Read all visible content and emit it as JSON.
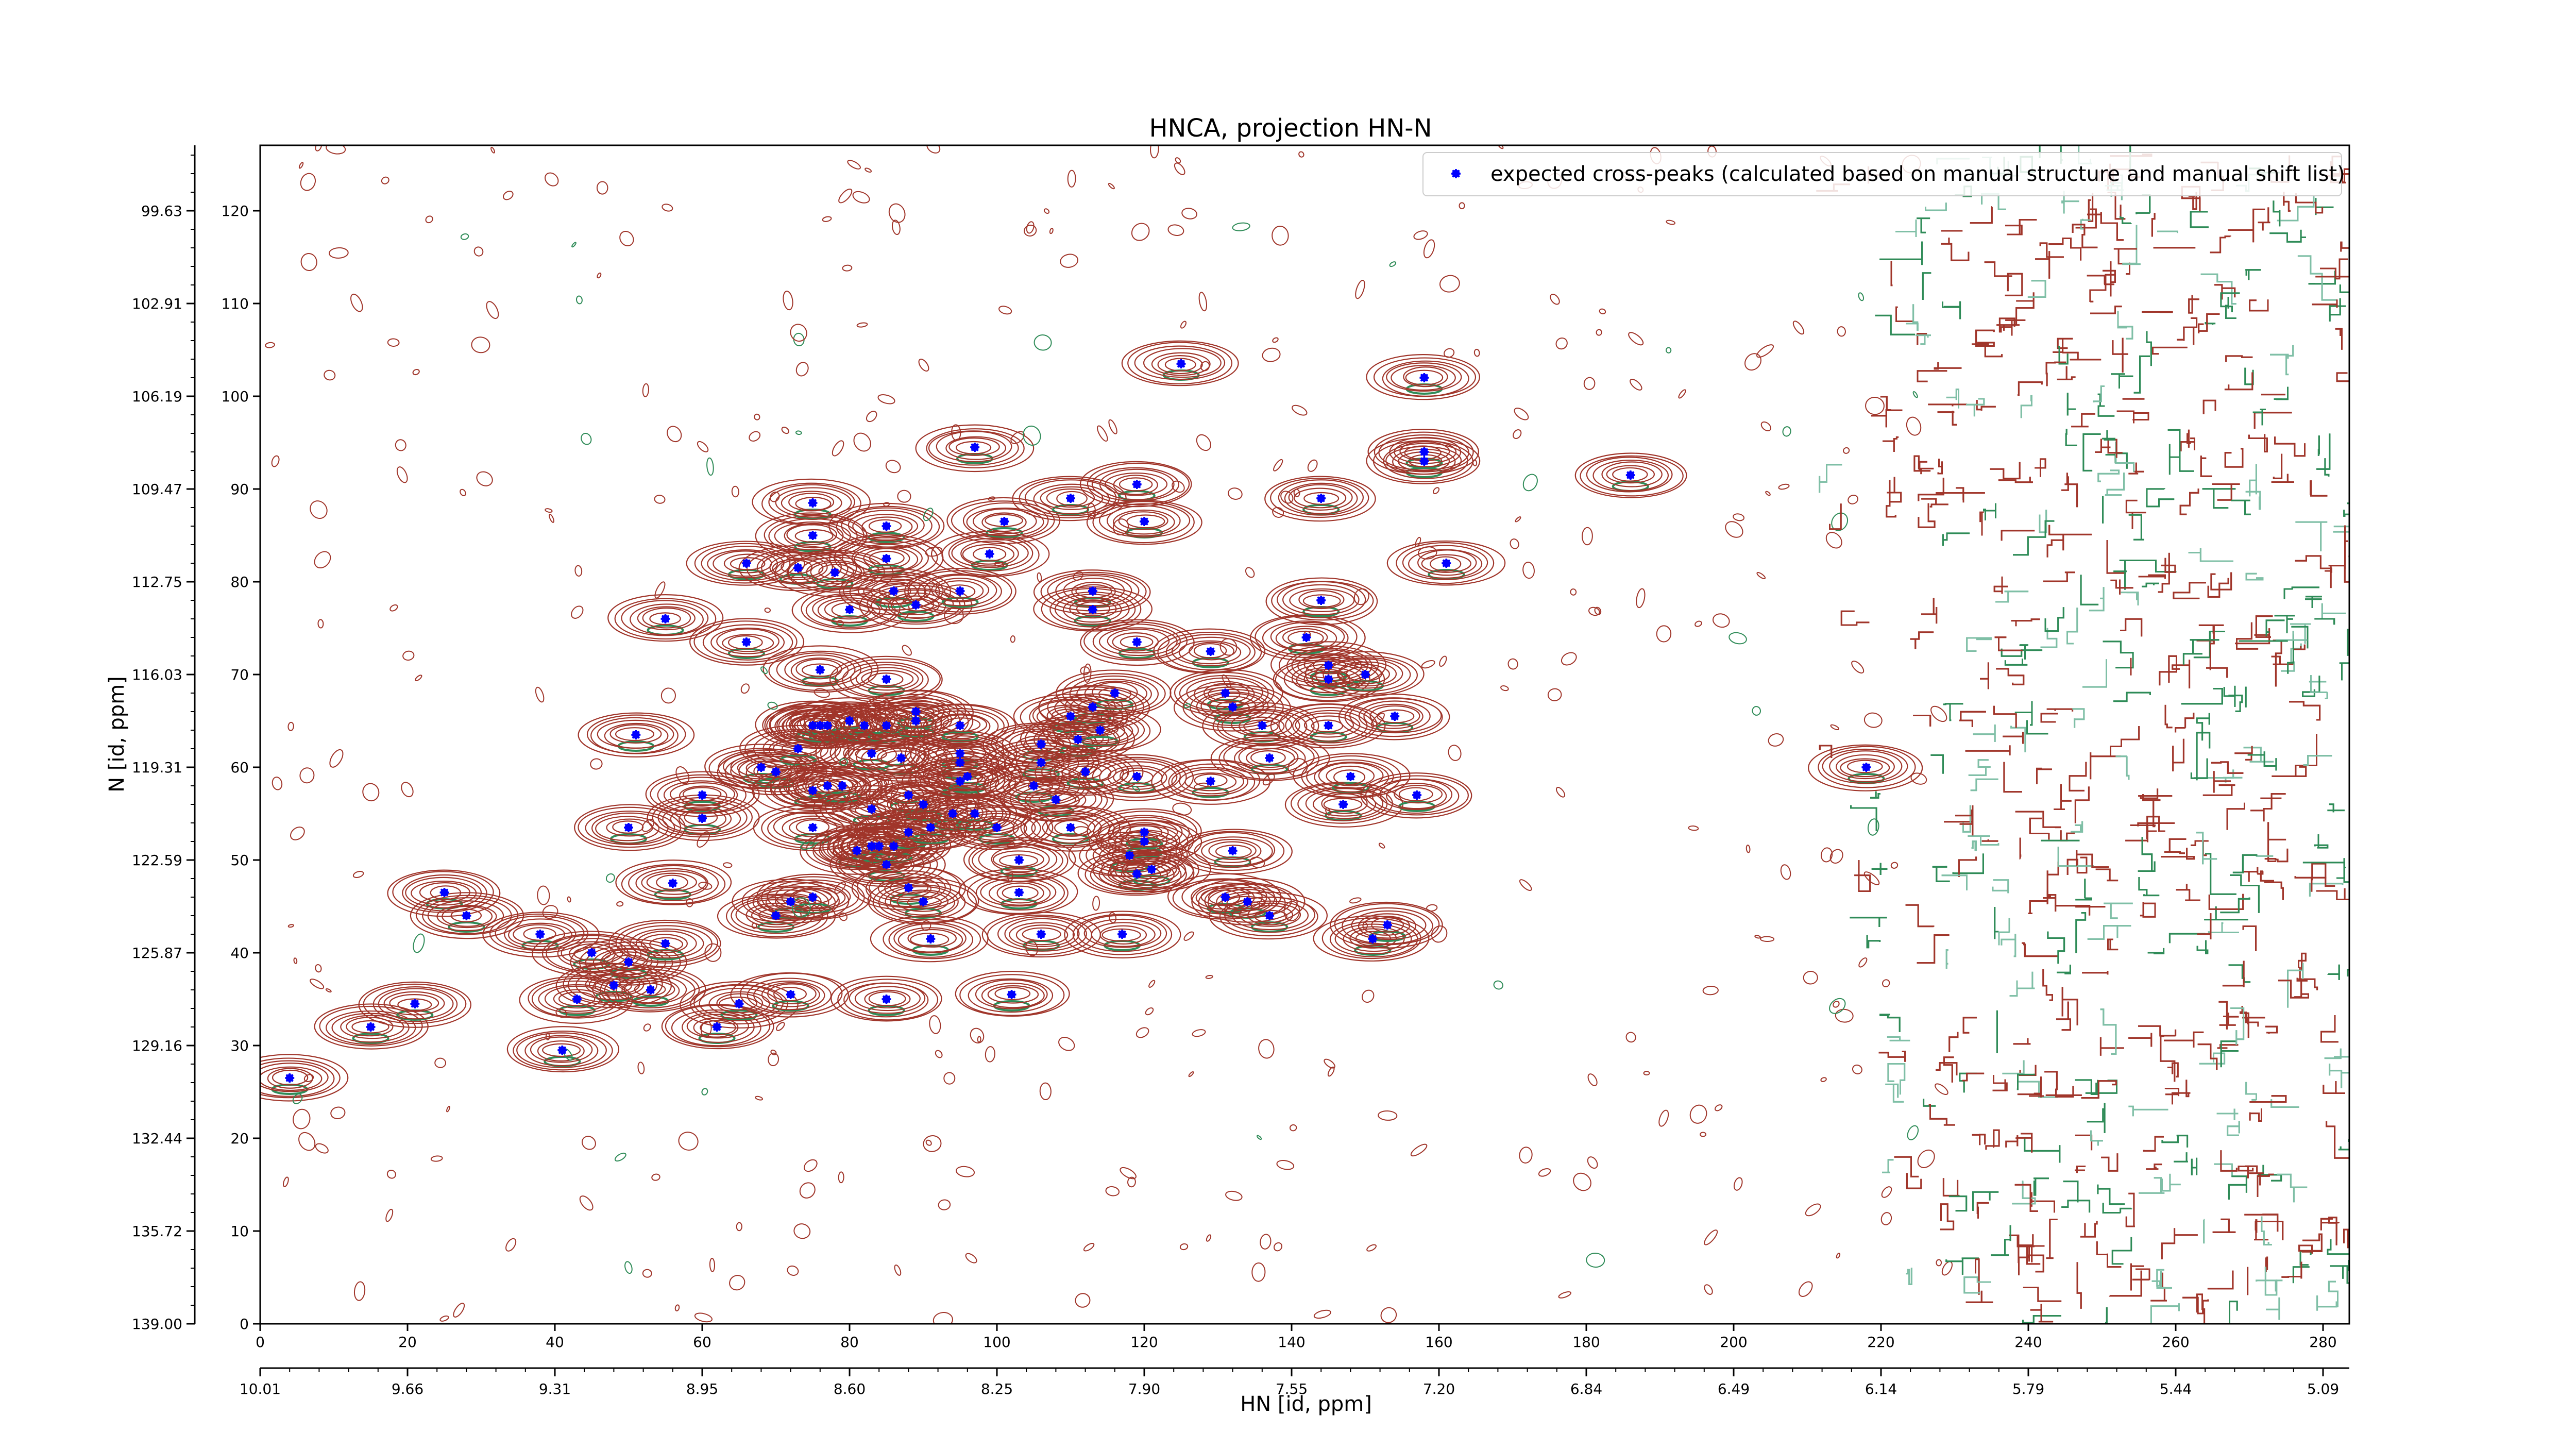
{
  "chart_data": {
    "type": "scatter",
    "title": "HNCA, projection HN-N",
    "xlabel": "HN [id, ppm]",
    "ylabel": "N [id, ppm]",
    "x_index_ticks": [
      "0",
      "20",
      "40",
      "60",
      "80",
      "100",
      "120",
      "140",
      "160",
      "180",
      "200",
      "220",
      "240",
      "260",
      "280"
    ],
    "x_ppm_ticks": [
      "10.01",
      "9.66",
      "9.31",
      "8.95",
      "8.60",
      "8.25",
      "7.90",
      "7.55",
      "7.20",
      "6.84",
      "6.49",
      "6.14",
      "5.79",
      "5.44",
      "5.09"
    ],
    "y_index_ticks": [
      "0",
      "10",
      "20",
      "30",
      "40",
      "50",
      "60",
      "70",
      "80",
      "90",
      "100",
      "110",
      "120"
    ],
    "y_ppm_ticks": [
      "139.00",
      "135.72",
      "132.44",
      "129.16",
      "125.87",
      "122.59",
      "119.31",
      "116.03",
      "112.75",
      "109.47",
      "106.19",
      "102.91",
      "99.63"
    ],
    "xlim": [
      0,
      285
    ],
    "ylim": [
      0,
      127
    ],
    "grid": false,
    "legend": {
      "placement": "top-right",
      "entries": [
        "expected cross-peaks (calculated based on manual structure and manual shift list)"
      ]
    },
    "colors": {
      "marker": "#0000ff",
      "contour_positive": "#a0352a",
      "contour_negative": "#2e8b57"
    },
    "series": [
      {
        "name": "expected cross-peaks (calculated based on manual structure and manual shift list)",
        "points": [
          [
            4,
            26.5
          ],
          [
            15,
            32
          ],
          [
            21,
            34.5
          ],
          [
            25,
            46.5
          ],
          [
            28,
            44
          ],
          [
            38,
            42
          ],
          [
            41,
            29.5
          ],
          [
            43,
            35
          ],
          [
            45,
            40
          ],
          [
            48,
            36.5
          ],
          [
            50,
            39
          ],
          [
            50,
            53.5
          ],
          [
            51,
            63.5
          ],
          [
            53,
            36
          ],
          [
            55,
            76
          ],
          [
            55,
            41
          ],
          [
            56,
            47.5
          ],
          [
            60,
            57
          ],
          [
            60,
            54.5
          ],
          [
            62,
            32
          ],
          [
            65,
            34.5
          ],
          [
            66,
            73.5
          ],
          [
            66,
            82
          ],
          [
            68,
            60
          ],
          [
            70,
            44
          ],
          [
            70,
            59.5
          ],
          [
            72,
            35.5
          ],
          [
            72,
            45.5
          ],
          [
            73,
            81.5
          ],
          [
            73,
            62
          ],
          [
            75,
            85
          ],
          [
            75,
            88.5
          ],
          [
            75,
            46
          ],
          [
            75,
            64.5
          ],
          [
            75,
            57.5
          ],
          [
            75,
            53.5
          ],
          [
            76,
            64.5
          ],
          [
            76,
            70.5
          ],
          [
            77,
            64.5
          ],
          [
            77,
            58
          ],
          [
            78,
            81
          ],
          [
            79,
            58
          ],
          [
            80,
            65
          ],
          [
            80,
            77
          ],
          [
            81,
            51
          ],
          [
            82,
            64.5
          ],
          [
            83,
            61.5
          ],
          [
            83,
            51.5
          ],
          [
            83,
            55.5
          ],
          [
            84,
            51.5
          ],
          [
            85,
            35
          ],
          [
            85,
            86
          ],
          [
            85,
            82.5
          ],
          [
            85,
            69.5
          ],
          [
            85,
            64.5
          ],
          [
            85,
            49.5
          ],
          [
            86,
            51.5
          ],
          [
            86,
            79
          ],
          [
            87,
            61
          ],
          [
            88,
            57
          ],
          [
            88,
            53
          ],
          [
            88,
            47
          ],
          [
            89,
            77.5
          ],
          [
            89,
            66
          ],
          [
            89,
            65
          ],
          [
            90,
            56
          ],
          [
            90,
            45.5
          ],
          [
            91,
            53.5
          ],
          [
            91,
            41.5
          ],
          [
            94,
            55
          ],
          [
            95,
            60.5
          ],
          [
            95,
            61.5
          ],
          [
            95,
            58.5
          ],
          [
            95,
            64.5
          ],
          [
            95,
            79
          ],
          [
            96,
            59
          ],
          [
            97,
            55
          ],
          [
            97,
            94.5
          ],
          [
            99,
            83
          ],
          [
            100,
            53.5
          ],
          [
            101,
            86.5
          ],
          [
            102,
            35.5
          ],
          [
            103,
            46.5
          ],
          [
            103,
            50
          ],
          [
            105,
            58
          ],
          [
            106,
            62.5
          ],
          [
            106,
            60.5
          ],
          [
            106,
            42
          ],
          [
            108,
            56.5
          ],
          [
            110,
            65.5
          ],
          [
            110,
            89
          ],
          [
            110,
            53.5
          ],
          [
            111,
            63
          ],
          [
            112,
            59.5
          ],
          [
            113,
            79
          ],
          [
            113,
            77
          ],
          [
            113,
            66.5
          ],
          [
            114,
            64
          ],
          [
            116,
            68
          ],
          [
            117,
            42
          ],
          [
            118,
            50.5
          ],
          [
            119,
            73.5
          ],
          [
            119,
            90.5
          ],
          [
            119,
            59
          ],
          [
            119,
            48.5
          ],
          [
            120,
            86.5
          ],
          [
            120,
            53
          ],
          [
            120,
            52
          ],
          [
            121,
            49
          ],
          [
            125,
            103.5
          ],
          [
            129,
            72.5
          ],
          [
            129,
            58.5
          ],
          [
            131,
            68
          ],
          [
            131,
            46
          ],
          [
            132,
            66.5
          ],
          [
            132,
            51
          ],
          [
            134,
            45.5
          ],
          [
            136,
            64.5
          ],
          [
            137,
            61
          ],
          [
            137,
            44
          ],
          [
            142,
            74
          ],
          [
            144,
            78
          ],
          [
            144,
            89
          ],
          [
            145,
            71
          ],
          [
            145,
            69.5
          ],
          [
            145,
            64.5
          ],
          [
            147,
            56
          ],
          [
            148,
            59
          ],
          [
            150,
            70
          ],
          [
            151,
            41.5
          ],
          [
            153,
            43
          ],
          [
            154,
            65.5
          ],
          [
            157,
            57
          ],
          [
            158,
            102
          ],
          [
            158,
            93
          ],
          [
            158,
            94
          ],
          [
            161,
            82
          ],
          [
            186,
            91.5
          ],
          [
            218,
            60
          ]
        ]
      }
    ]
  }
}
